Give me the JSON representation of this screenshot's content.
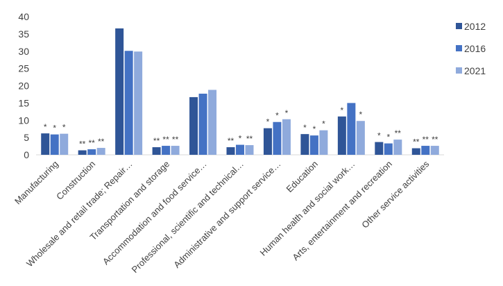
{
  "chart_data": {
    "type": "bar",
    "ylim": [
      0,
      40
    ],
    "yticks": [
      0,
      5,
      10,
      15,
      20,
      25,
      30,
      35,
      40
    ],
    "grid": false,
    "legend_position": "right",
    "categories": [
      "Manufacturing",
      "Construction",
      "Wholesale and retail trade; Repair…",
      "Transportation and storage",
      "Accommodation and food service…",
      "Professional, scientific and technical…",
      "Administrative and support service…",
      "Education",
      "Human health and social work…",
      "Arts, entertainment and recreation",
      "Other service activities"
    ],
    "series": [
      {
        "name": "2012",
        "color": "#2F5597",
        "values": [
          6.2,
          1.3,
          36.6,
          2.2,
          16.7,
          2.2,
          7.7,
          6.0,
          11.1,
          3.7,
          1.9
        ],
        "annotations": [
          "*",
          "**",
          "",
          "**",
          "",
          "**",
          "*",
          "*",
          "*",
          "*",
          "**"
        ]
      },
      {
        "name": "2016",
        "color": "#4472C4",
        "values": [
          5.9,
          1.6,
          30.1,
          2.6,
          17.7,
          2.9,
          9.5,
          5.6,
          15.0,
          3.3,
          2.6
        ],
        "annotations": [
          "*",
          "**",
          "",
          "**",
          "",
          "*",
          "*",
          "*",
          "",
          "*",
          "**"
        ]
      },
      {
        "name": "2021",
        "color": "#8FAADC",
        "values": [
          6.1,
          2.0,
          29.9,
          2.6,
          18.8,
          2.8,
          10.3,
          7.1,
          9.8,
          4.4,
          2.6
        ],
        "annotations": [
          "*",
          "**",
          "",
          "**",
          "",
          "**",
          "*",
          "*",
          "*",
          "**",
          "**"
        ]
      }
    ]
  }
}
